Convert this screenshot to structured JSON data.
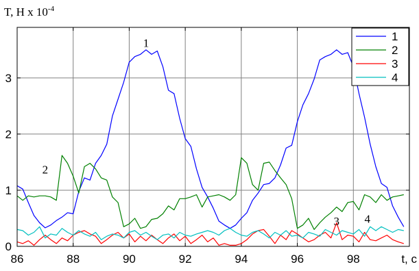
{
  "chart_data": {
    "type": "line",
    "ylabel": "T, H x 10",
    "ylabel_exponent": "-4",
    "xlabel": "t, c",
    "xlim": [
      86,
      100
    ],
    "ylim": [
      0,
      3.9
    ],
    "x_ticks": [
      "86",
      "88",
      "90",
      "92",
      "94",
      "96",
      "98"
    ],
    "y_ticks": [
      "0",
      "1",
      "2",
      "3"
    ],
    "grid": true,
    "legend_position": "top-right",
    "annotations": [
      {
        "text": "1",
        "x": 90.6,
        "y": 3.55
      },
      {
        "text": "2",
        "x": 87.0,
        "y": 1.3
      },
      {
        "text": "3",
        "x": 97.4,
        "y": 0.38
      },
      {
        "text": "4",
        "x": 98.5,
        "y": 0.42
      }
    ],
    "x": [
      86.0,
      86.2,
      86.4,
      86.6,
      86.8,
      87.0,
      87.2,
      87.4,
      87.6,
      87.8,
      88.0,
      88.2,
      88.4,
      88.6,
      88.8,
      89.0,
      89.2,
      89.4,
      89.6,
      89.8,
      90.0,
      90.2,
      90.4,
      90.6,
      90.8,
      91.0,
      91.2,
      91.4,
      91.6,
      91.8,
      92.0,
      92.2,
      92.4,
      92.6,
      92.8,
      93.0,
      93.2,
      93.4,
      93.6,
      93.8,
      94.0,
      94.2,
      94.4,
      94.6,
      94.8,
      95.0,
      95.2,
      95.4,
      95.6,
      95.8,
      96.0,
      96.2,
      96.4,
      96.6,
      96.8,
      97.0,
      97.2,
      97.4,
      97.6,
      97.8,
      98.0,
      98.2,
      98.4,
      98.6,
      98.8,
      99.0,
      99.2,
      99.4,
      99.6,
      99.8
    ],
    "series": [
      {
        "name": "1",
        "color": "#0000ff",
        "values": [
          1.08,
          1.02,
          0.78,
          0.55,
          0.42,
          0.33,
          0.38,
          0.46,
          0.52,
          0.6,
          0.58,
          0.98,
          1.22,
          1.18,
          1.48,
          1.62,
          1.82,
          2.32,
          2.62,
          2.92,
          3.28,
          3.38,
          3.42,
          3.5,
          3.42,
          3.48,
          3.2,
          2.78,
          2.72,
          2.28,
          1.92,
          1.78,
          1.38,
          1.05,
          0.88,
          0.68,
          0.45,
          0.38,
          0.32,
          0.38,
          0.5,
          0.6,
          0.82,
          0.95,
          1.1,
          1.12,
          1.22,
          1.45,
          1.75,
          1.8,
          2.22,
          2.52,
          2.72,
          2.98,
          3.32,
          3.38,
          3.42,
          3.5,
          3.42,
          3.45,
          3.2,
          2.72,
          2.3,
          1.82,
          1.42,
          1.12,
          1.05,
          0.72,
          0.52,
          0.35
        ]
      },
      {
        "name": "2",
        "color": "#008000",
        "values": [
          0.9,
          0.82,
          0.9,
          0.88,
          0.9,
          0.9,
          0.88,
          0.82,
          1.62,
          1.48,
          1.25,
          0.95,
          1.42,
          1.48,
          1.38,
          1.22,
          1.18,
          0.88,
          0.78,
          0.35,
          0.4,
          0.5,
          0.32,
          0.35,
          0.48,
          0.5,
          0.58,
          0.72,
          0.65,
          0.85,
          0.85,
          0.88,
          0.92,
          0.7,
          0.88,
          0.9,
          0.92,
          0.88,
          0.82,
          0.92,
          1.58,
          1.48,
          1.1,
          1.0,
          1.48,
          1.5,
          1.35,
          1.22,
          1.1,
          0.85,
          0.32,
          0.38,
          0.5,
          0.3,
          0.42,
          0.52,
          0.6,
          0.7,
          0.62,
          0.78,
          0.8,
          0.65,
          0.92,
          0.88,
          0.78,
          0.92,
          0.82,
          0.88,
          0.9,
          0.92
        ]
      },
      {
        "name": "3",
        "color": "#ff0000",
        "values": [
          0.08,
          0.05,
          0.1,
          0.02,
          0.12,
          0.2,
          0.12,
          0.05,
          0.15,
          0.1,
          0.2,
          0.25,
          0.28,
          0.22,
          0.18,
          0.05,
          0.12,
          0.2,
          0.25,
          0.15,
          0.22,
          0.08,
          0.18,
          0.1,
          0.2,
          0.12,
          0.05,
          0.15,
          0.22,
          0.1,
          0.18,
          0.05,
          0.12,
          0.2,
          0.08,
          0.15,
          0.02,
          0.05,
          0.02,
          0.02,
          0.05,
          0.12,
          0.22,
          0.28,
          0.3,
          0.18,
          0.05,
          0.2,
          0.12,
          0.28,
          0.22,
          0.15,
          0.08,
          0.12,
          0.2,
          0.25,
          0.15,
          0.42,
          0.12,
          0.2,
          0.18,
          0.08,
          0.25,
          0.12,
          0.1,
          0.15,
          0.2,
          0.12,
          0.08,
          0.05
        ]
      },
      {
        "name": "4",
        "color": "#00bfbf",
        "values": [
          0.3,
          0.28,
          0.2,
          0.25,
          0.35,
          0.15,
          0.22,
          0.2,
          0.32,
          0.25,
          0.2,
          0.28,
          0.22,
          0.18,
          0.25,
          0.12,
          0.18,
          0.22,
          0.2,
          0.15,
          0.25,
          0.28,
          0.2,
          0.25,
          0.18,
          0.12,
          0.2,
          0.22,
          0.15,
          0.25,
          0.2,
          0.18,
          0.22,
          0.25,
          0.28,
          0.25,
          0.2,
          0.28,
          0.32,
          0.25,
          0.2,
          0.18,
          0.25,
          0.28,
          0.22,
          0.15,
          0.25,
          0.2,
          0.28,
          0.18,
          0.2,
          0.15,
          0.25,
          0.22,
          0.18,
          0.3,
          0.25,
          0.2,
          0.28,
          0.25,
          0.22,
          0.3,
          0.18,
          0.35,
          0.28,
          0.35,
          0.3,
          0.25,
          0.3,
          0.28
        ]
      }
    ]
  }
}
